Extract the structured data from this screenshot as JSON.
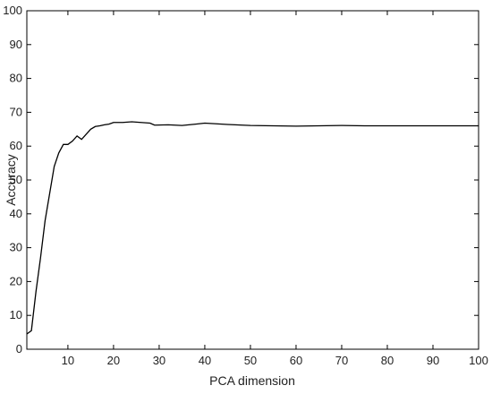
{
  "chart_data": {
    "type": "line",
    "x_label": "PCA dimension",
    "y_label": "Accuracy",
    "x": [
      1,
      2,
      3,
      4,
      5,
      6,
      7,
      8,
      9,
      10,
      11,
      12,
      13,
      14,
      15,
      16,
      17,
      18,
      19,
      20,
      22,
      24,
      26,
      28,
      29,
      32,
      35,
      38,
      40,
      45,
      50,
      55,
      60,
      65,
      70,
      75,
      80,
      90,
      100
    ],
    "series": [
      {
        "color": "#000000",
        "values": [
          4.5,
          5.5,
          17,
          27,
          38,
          46,
          54,
          58,
          60.5,
          60.5,
          61.5,
          63,
          62,
          63.5,
          65,
          65.8,
          66,
          66.3,
          66.5,
          67,
          67,
          67.2,
          67,
          66.8,
          66.2,
          66.3,
          66.1,
          66.5,
          66.8,
          66.4,
          66.1,
          66,
          65.9,
          66,
          66.1,
          66,
          66,
          66,
          66
        ]
      }
    ],
    "xlim": [
      1,
      100
    ],
    "ylim": [
      0,
      100
    ],
    "xticks": [
      10,
      20,
      30,
      40,
      50,
      60,
      70,
      80,
      90,
      100
    ],
    "yticks": [
      0,
      10,
      20,
      30,
      40,
      50,
      60,
      70,
      80,
      90,
      100
    ]
  }
}
